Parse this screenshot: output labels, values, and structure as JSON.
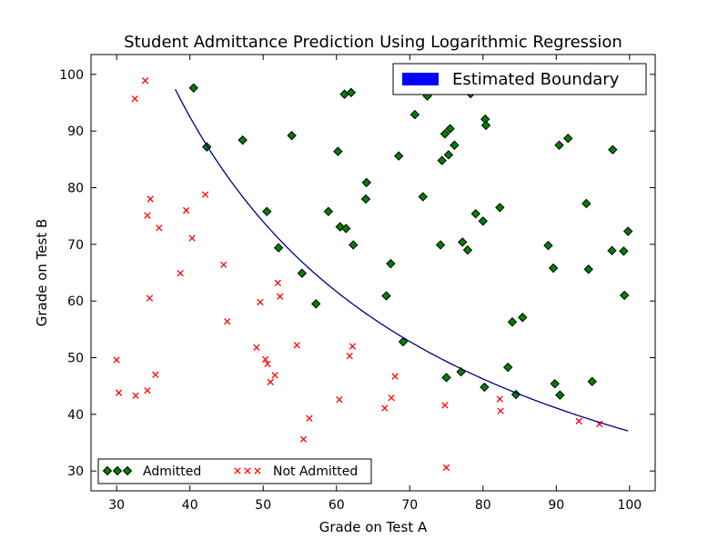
{
  "chart_data": {
    "type": "scatter",
    "title": "Student Admittance Prediction Using Logarithmic Regression",
    "xlabel": "Grade on Test A",
    "ylabel": "Grade on Test B",
    "xlim": [
      26.5,
      103.5
    ],
    "ylim": [
      26.5,
      103.5
    ],
    "xticks": [
      "30",
      "40",
      "50",
      "60",
      "70",
      "80",
      "90",
      "100"
    ],
    "yticks": [
      "30",
      "40",
      "50",
      "60",
      "70",
      "80",
      "90",
      "100"
    ],
    "grid": false,
    "legend_boundary_placement": "top-right",
    "legend_points_placement": "bottom-left",
    "series": [
      {
        "name": "Admitted",
        "marker": "diamond",
        "color": "#008000",
        "points": [
          [
            40.5,
            97.6
          ],
          [
            42.3,
            87.2
          ],
          [
            47.2,
            88.4
          ],
          [
            50.5,
            75.8
          ],
          [
            52.1,
            69.4
          ],
          [
            53.9,
            89.2
          ],
          [
            55.3,
            64.9
          ],
          [
            57.2,
            59.5
          ],
          [
            58.9,
            75.8
          ],
          [
            60.2,
            86.4
          ],
          [
            60.5,
            73.1
          ],
          [
            61.1,
            96.5
          ],
          [
            61.3,
            72.8
          ],
          [
            62.0,
            96.8
          ],
          [
            62.3,
            69.9
          ],
          [
            64.0,
            78.0
          ],
          [
            64.1,
            80.9
          ],
          [
            66.8,
            60.9
          ],
          [
            67.4,
            66.6
          ],
          [
            68.5,
            85.6
          ],
          [
            69.1,
            52.8
          ],
          [
            70.7,
            92.9
          ],
          [
            71.8,
            78.4
          ],
          [
            72.4,
            96.2
          ],
          [
            74.2,
            69.9
          ],
          [
            74.4,
            84.8
          ],
          [
            74.8,
            89.5
          ],
          [
            75.0,
            46.5
          ],
          [
            75.3,
            85.8
          ],
          [
            75.5,
            90.4
          ],
          [
            76.1,
            87.5
          ],
          [
            77.0,
            47.5
          ],
          [
            77.2,
            70.4
          ],
          [
            77.9,
            69.0
          ],
          [
            78.3,
            96.6
          ],
          [
            79.0,
            75.4
          ],
          [
            80.0,
            74.1
          ],
          [
            80.2,
            44.8
          ],
          [
            80.3,
            92.1
          ],
          [
            80.4,
            91.0
          ],
          [
            82.3,
            76.5
          ],
          [
            83.4,
            48.3
          ],
          [
            84.0,
            56.3
          ],
          [
            84.5,
            43.5
          ],
          [
            85.4,
            57.1
          ],
          [
            88.9,
            69.8
          ],
          [
            89.6,
            65.8
          ],
          [
            89.8,
            45.4
          ],
          [
            90.4,
            87.5
          ],
          [
            90.5,
            43.4
          ],
          [
            91.6,
            88.7
          ],
          [
            94.1,
            77.2
          ],
          [
            94.4,
            65.6
          ],
          [
            94.9,
            45.8
          ],
          [
            97.6,
            68.9
          ],
          [
            97.7,
            86.7
          ],
          [
            99.2,
            68.8
          ],
          [
            99.3,
            61.0
          ],
          [
            99.8,
            72.3
          ]
        ]
      },
      {
        "name": "Not Admitted",
        "marker": "x",
        "color": "#ff0000",
        "points": [
          [
            30.0,
            49.6
          ],
          [
            30.3,
            43.8
          ],
          [
            32.5,
            95.7
          ],
          [
            32.6,
            43.3
          ],
          [
            33.9,
            98.9
          ],
          [
            34.2,
            44.2
          ],
          [
            34.2,
            75.1
          ],
          [
            34.5,
            60.5
          ],
          [
            34.6,
            78.0
          ],
          [
            35.3,
            47.0
          ],
          [
            35.8,
            72.9
          ],
          [
            38.7,
            64.9
          ],
          [
            39.5,
            76.0
          ],
          [
            40.3,
            71.1
          ],
          [
            42.1,
            78.8
          ],
          [
            44.6,
            66.4
          ],
          [
            45.1,
            56.4
          ],
          [
            49.1,
            51.8
          ],
          [
            49.6,
            59.8
          ],
          [
            50.3,
            49.7
          ],
          [
            50.6,
            48.9
          ],
          [
            51.0,
            45.7
          ],
          [
            51.6,
            46.9
          ],
          [
            52.0,
            63.2
          ],
          [
            52.3,
            60.8
          ],
          [
            54.6,
            52.2
          ],
          [
            55.5,
            35.6
          ],
          [
            56.3,
            39.3
          ],
          [
            60.4,
            42.6
          ],
          [
            61.8,
            50.3
          ],
          [
            62.2,
            52.0
          ],
          [
            66.6,
            41.1
          ],
          [
            67.5,
            42.9
          ],
          [
            68.0,
            46.7
          ],
          [
            74.8,
            41.6
          ],
          [
            75.0,
            30.6
          ],
          [
            82.3,
            42.7
          ],
          [
            82.4,
            40.6
          ],
          [
            93.1,
            38.8
          ],
          [
            95.9,
            38.3
          ]
        ]
      }
    ],
    "boundary": {
      "name": "Estimated Boundary",
      "color": "#0000ff",
      "line_color": "#000080",
      "x_range": [
        38.0,
        99.8
      ],
      "formula": "y = 3700 / x"
    }
  }
}
